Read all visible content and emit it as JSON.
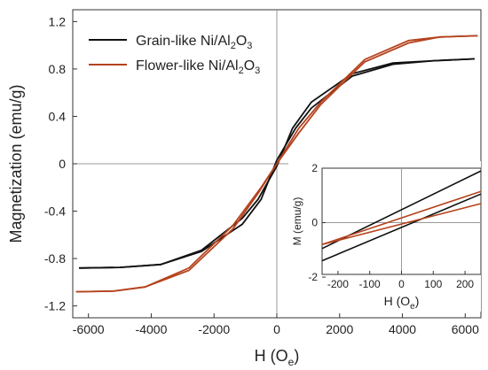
{
  "chart_data": {
    "type": "line",
    "xlabel": {
      "main": "H (O",
      "sub": "e",
      "close": ")"
    },
    "ylabel": "Magnetization (emu/g)",
    "xlim": [
      -6500,
      6500
    ],
    "ylim": [
      -1.3,
      1.3
    ],
    "xticks": [
      -6000,
      -4000,
      -2000,
      0,
      2000,
      4000,
      6000
    ],
    "yticks": [
      -1.2,
      -0.8,
      -0.4,
      0,
      0.4,
      0.8,
      1.2
    ],
    "xtick_labels": [
      "-6000",
      "-4000",
      "-2000",
      "0",
      "2000",
      "4000",
      "6000"
    ],
    "ytick_labels": [
      "-1.2",
      "-0.8",
      "-0.4",
      "0",
      "0.4",
      "0.8",
      "1.2"
    ],
    "legend_position": "top-left",
    "series": [
      {
        "name": {
          "pre": "Grain-like Ni/Al",
          "s1": "2",
          "mid": "O",
          "s2": "3"
        },
        "color": "#111111",
        "upper": [
          [
            -6300,
            -0.88
          ],
          [
            -5000,
            -0.875
          ],
          [
            -3700,
            -0.85
          ],
          [
            -2400,
            -0.73
          ],
          [
            -1100,
            -0.46
          ],
          [
            -600,
            -0.3
          ],
          [
            0,
            -0.02
          ],
          [
            500,
            0.3
          ],
          [
            1100,
            0.52
          ],
          [
            2400,
            0.76
          ],
          [
            3700,
            0.85
          ],
          [
            5000,
            0.87
          ],
          [
            6300,
            0.885
          ]
        ],
        "lower": [
          [
            -6300,
            -0.88
          ],
          [
            -5000,
            -0.875
          ],
          [
            -3700,
            -0.85
          ],
          [
            -2400,
            -0.74
          ],
          [
            -1100,
            -0.51
          ],
          [
            -500,
            -0.3
          ],
          [
            0,
            0.03
          ],
          [
            600,
            0.3
          ],
          [
            1100,
            0.47
          ],
          [
            2400,
            0.74
          ],
          [
            3700,
            0.84
          ],
          [
            5000,
            0.87
          ],
          [
            6300,
            0.885
          ]
        ]
      },
      {
        "name": {
          "pre": "Flower-like Ni/Al",
          "s1": "2",
          "mid": "O",
          "s2": "3"
        },
        "color": "#b5431e",
        "upper": [
          [
            -6400,
            -1.08
          ],
          [
            -5200,
            -1.075
          ],
          [
            -4200,
            -1.04
          ],
          [
            -2800,
            -0.88
          ],
          [
            -1400,
            -0.52
          ],
          [
            -500,
            -0.2
          ],
          [
            0,
            0.0
          ],
          [
            700,
            0.3
          ],
          [
            1400,
            0.52
          ],
          [
            2800,
            0.88
          ],
          [
            4200,
            1.04
          ],
          [
            5200,
            1.07
          ],
          [
            6400,
            1.08
          ]
        ],
        "lower": [
          [
            -6400,
            -1.08
          ],
          [
            -5200,
            -1.075
          ],
          [
            -4200,
            -1.04
          ],
          [
            -2800,
            -0.9
          ],
          [
            -1400,
            -0.55
          ],
          [
            -600,
            -0.25
          ],
          [
            0,
            0.0
          ],
          [
            700,
            0.26
          ],
          [
            1400,
            0.5
          ],
          [
            2800,
            0.86
          ],
          [
            4200,
            1.02
          ],
          [
            5200,
            1.07
          ],
          [
            6400,
            1.08
          ]
        ]
      }
    ],
    "inset": {
      "xlabel": {
        "main": "H (O",
        "sub": "e",
        "close": ")"
      },
      "ylabel": "M (emu/g)",
      "xlim": [
        -250,
        250
      ],
      "ylim": [
        -1.9,
        2.0
      ],
      "xticks": [
        -200,
        -100,
        0,
        100,
        200
      ],
      "yticks": [
        -2,
        0,
        2
      ],
      "xtick_labels": [
        "-200",
        "-100",
        "0",
        "100",
        "200"
      ],
      "ytick_labels": [
        "-2",
        "0",
        "2"
      ],
      "series": [
        {
          "color": "#111111",
          "upper": [
            [
              -250,
              -0.95
            ],
            [
              250,
              1.9
            ]
          ],
          "lower": [
            [
              -250,
              -1.4
            ],
            [
              250,
              1.05
            ]
          ]
        },
        {
          "color": "#b5431e",
          "upper": [
            [
              -250,
              -0.8
            ],
            [
              250,
              1.15
            ]
          ],
          "lower": [
            [
              -250,
              -0.8
            ],
            [
              250,
              0.7
            ]
          ]
        }
      ]
    }
  }
}
